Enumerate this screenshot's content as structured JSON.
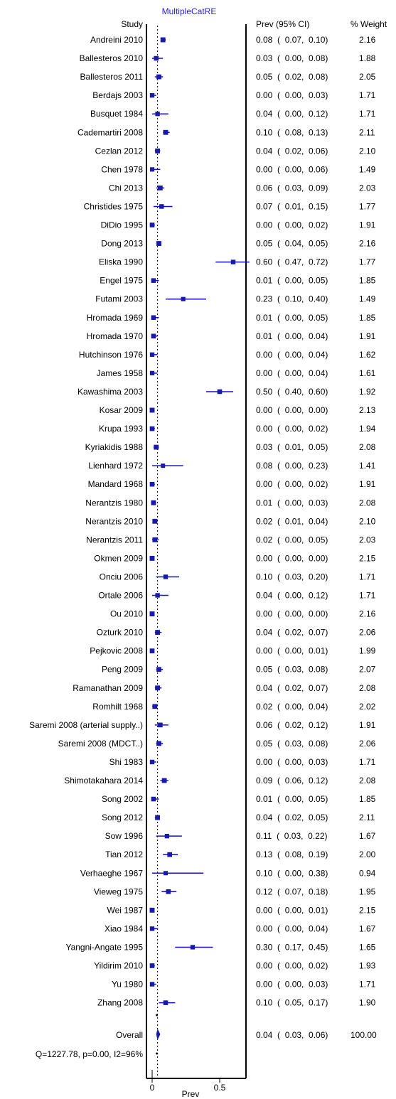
{
  "chart_data": {
    "type": "forest",
    "title": "MultipleCatRE",
    "headers": {
      "study": "Study",
      "estimate": "Prev (95% CI)",
      "weight": "% Weight"
    },
    "xlabel": "Prev",
    "xlim": [
      0,
      0.7
    ],
    "xticks": [
      "0",
      "0.5"
    ],
    "reference_line": 0.04,
    "studies": [
      {
        "name": "Andreini 2010",
        "est": 0.08,
        "lo": 0.07,
        "hi": 0.1,
        "estimate_text": "0.08  (  0.07,  0.10)",
        "weight": "2.16"
      },
      {
        "name": "Ballesteros 2010",
        "est": 0.03,
        "lo": 0.0,
        "hi": 0.08,
        "estimate_text": "0.03  (  0.00,  0.08)",
        "weight": "1.88"
      },
      {
        "name": "Ballesteros 2011",
        "est": 0.05,
        "lo": 0.02,
        "hi": 0.08,
        "estimate_text": "0.05  (  0.02,  0.08)",
        "weight": "2.05"
      },
      {
        "name": "Berdajs 2003",
        "est": 0.0,
        "lo": 0.0,
        "hi": 0.03,
        "estimate_text": "0.00  (  0.00,  0.03)",
        "weight": "1.71"
      },
      {
        "name": "Busquet 1984",
        "est": 0.04,
        "lo": 0.0,
        "hi": 0.12,
        "estimate_text": "0.04  (  0.00,  0.12)",
        "weight": "1.71"
      },
      {
        "name": "Cademartiri 2008",
        "est": 0.1,
        "lo": 0.08,
        "hi": 0.13,
        "estimate_text": "0.10  (  0.08,  0.13)",
        "weight": "2.11"
      },
      {
        "name": "Cezlan 2012",
        "est": 0.04,
        "lo": 0.02,
        "hi": 0.06,
        "estimate_text": "0.04  (  0.02,  0.06)",
        "weight": "2.10"
      },
      {
        "name": "Chen 1978",
        "est": 0.0,
        "lo": 0.0,
        "hi": 0.06,
        "estimate_text": "0.00  (  0.00,  0.06)",
        "weight": "1.49"
      },
      {
        "name": "Chi 2013",
        "est": 0.06,
        "lo": 0.03,
        "hi": 0.09,
        "estimate_text": "0.06  (  0.03,  0.09)",
        "weight": "2.03"
      },
      {
        "name": "Christides 1975",
        "est": 0.07,
        "lo": 0.01,
        "hi": 0.15,
        "estimate_text": "0.07  (  0.01,  0.15)",
        "weight": "1.77"
      },
      {
        "name": "DiDio 1995",
        "est": 0.0,
        "lo": 0.0,
        "hi": 0.02,
        "estimate_text": "0.00  (  0.00,  0.02)",
        "weight": "1.91"
      },
      {
        "name": "Dong 2013",
        "est": 0.05,
        "lo": 0.04,
        "hi": 0.05,
        "estimate_text": "0.05  (  0.04,  0.05)",
        "weight": "2.16"
      },
      {
        "name": "Eliska 1990",
        "est": 0.6,
        "lo": 0.47,
        "hi": 0.72,
        "estimate_text": "0.60  (  0.47,  0.72)",
        "weight": "1.77"
      },
      {
        "name": "Engel 1975",
        "est": 0.01,
        "lo": 0.0,
        "hi": 0.05,
        "estimate_text": "0.01  (  0.00,  0.05)",
        "weight": "1.85"
      },
      {
        "name": "Futami 2003",
        "est": 0.23,
        "lo": 0.1,
        "hi": 0.4,
        "estimate_text": "0.23  (  0.10,  0.40)",
        "weight": "1.49"
      },
      {
        "name": "Hromada 1969",
        "est": 0.01,
        "lo": 0.0,
        "hi": 0.05,
        "estimate_text": "0.01  (  0.00,  0.05)",
        "weight": "1.85"
      },
      {
        "name": "Hromada 1970",
        "est": 0.01,
        "lo": 0.0,
        "hi": 0.04,
        "estimate_text": "0.01  (  0.00,  0.04)",
        "weight": "1.91"
      },
      {
        "name": "Hutchinson 1976",
        "est": 0.0,
        "lo": 0.0,
        "hi": 0.04,
        "estimate_text": "0.00  (  0.00,  0.04)",
        "weight": "1.62"
      },
      {
        "name": "James 1958",
        "est": 0.0,
        "lo": 0.0,
        "hi": 0.04,
        "estimate_text": "0.00  (  0.00,  0.04)",
        "weight": "1.61"
      },
      {
        "name": "Kawashima 2003",
        "est": 0.5,
        "lo": 0.4,
        "hi": 0.6,
        "estimate_text": "0.50  (  0.40,  0.60)",
        "weight": "1.92"
      },
      {
        "name": "Kosar 2009",
        "est": 0.0,
        "lo": 0.0,
        "hi": 0.0,
        "estimate_text": "0.00  (  0.00,  0.00)",
        "weight": "2.13"
      },
      {
        "name": "Krupa 1993",
        "est": 0.0,
        "lo": 0.0,
        "hi": 0.02,
        "estimate_text": "0.00  (  0.00,  0.02)",
        "weight": "1.94"
      },
      {
        "name": "Kyriakidis 1988",
        "est": 0.03,
        "lo": 0.01,
        "hi": 0.05,
        "estimate_text": "0.03  (  0.01,  0.05)",
        "weight": "2.08"
      },
      {
        "name": "Lienhard 1972",
        "est": 0.08,
        "lo": 0.0,
        "hi": 0.23,
        "estimate_text": "0.08  (  0.00,  0.23)",
        "weight": "1.41"
      },
      {
        "name": "Mandard 1968",
        "est": 0.0,
        "lo": 0.0,
        "hi": 0.02,
        "estimate_text": "0.00  (  0.00,  0.02)",
        "weight": "1.91"
      },
      {
        "name": "Nerantzis 1980",
        "est": 0.01,
        "lo": 0.0,
        "hi": 0.03,
        "estimate_text": "0.01  (  0.00,  0.03)",
        "weight": "2.08"
      },
      {
        "name": "Nerantzis 2010",
        "est": 0.02,
        "lo": 0.01,
        "hi": 0.04,
        "estimate_text": "0.02  (  0.01,  0.04)",
        "weight": "2.10"
      },
      {
        "name": "Nerantzis 2011",
        "est": 0.02,
        "lo": 0.0,
        "hi": 0.05,
        "estimate_text": "0.02  (  0.00,  0.05)",
        "weight": "2.03"
      },
      {
        "name": "Okmen 2009",
        "est": 0.0,
        "lo": 0.0,
        "hi": 0.0,
        "estimate_text": "0.00  (  0.00,  0.00)",
        "weight": "2.15"
      },
      {
        "name": "Onciu 2006",
        "est": 0.1,
        "lo": 0.03,
        "hi": 0.2,
        "estimate_text": "0.10  (  0.03,  0.20)",
        "weight": "1.71"
      },
      {
        "name": "Ortale 2006",
        "est": 0.04,
        "lo": 0.0,
        "hi": 0.12,
        "estimate_text": "0.04  (  0.00,  0.12)",
        "weight": "1.71"
      },
      {
        "name": "Ou 2010",
        "est": 0.0,
        "lo": 0.0,
        "hi": 0.0,
        "estimate_text": "0.00  (  0.00,  0.00)",
        "weight": "2.16"
      },
      {
        "name": "Ozturk 2010",
        "est": 0.04,
        "lo": 0.02,
        "hi": 0.07,
        "estimate_text": "0.04  (  0.02,  0.07)",
        "weight": "2.06"
      },
      {
        "name": "Pejkovic 2008",
        "est": 0.0,
        "lo": 0.0,
        "hi": 0.01,
        "estimate_text": "0.00  (  0.00,  0.01)",
        "weight": "1.99"
      },
      {
        "name": "Peng 2009",
        "est": 0.05,
        "lo": 0.03,
        "hi": 0.08,
        "estimate_text": "0.05  (  0.03,  0.08)",
        "weight": "2.07"
      },
      {
        "name": "Ramanathan 2009",
        "est": 0.04,
        "lo": 0.02,
        "hi": 0.07,
        "estimate_text": "0.04  (  0.02,  0.07)",
        "weight": "2.08"
      },
      {
        "name": "Romhilt 1968",
        "est": 0.02,
        "lo": 0.0,
        "hi": 0.04,
        "estimate_text": "0.02  (  0.00,  0.04)",
        "weight": "2.02"
      },
      {
        "name": "Saremi 2008 (arterial supply..)",
        "est": 0.06,
        "lo": 0.02,
        "hi": 0.12,
        "estimate_text": "0.06  (  0.02,  0.12)",
        "weight": "1.91"
      },
      {
        "name": "Saremi 2008 (MDCT..)",
        "est": 0.05,
        "lo": 0.03,
        "hi": 0.08,
        "estimate_text": "0.05  (  0.03,  0.08)",
        "weight": "2.06"
      },
      {
        "name": "Shi 1983",
        "est": 0.0,
        "lo": 0.0,
        "hi": 0.03,
        "estimate_text": "0.00  (  0.00,  0.03)",
        "weight": "1.71"
      },
      {
        "name": "Shimotakahara 2014",
        "est": 0.09,
        "lo": 0.06,
        "hi": 0.12,
        "estimate_text": "0.09  (  0.06,  0.12)",
        "weight": "2.08"
      },
      {
        "name": "Song 2002",
        "est": 0.01,
        "lo": 0.0,
        "hi": 0.05,
        "estimate_text": "0.01  (  0.00,  0.05)",
        "weight": "1.85"
      },
      {
        "name": "Song 2012",
        "est": 0.04,
        "lo": 0.02,
        "hi": 0.05,
        "estimate_text": "0.04  (  0.02,  0.05)",
        "weight": "2.11"
      },
      {
        "name": "Sow 1996",
        "est": 0.11,
        "lo": 0.03,
        "hi": 0.22,
        "estimate_text": "0.11  (  0.03,  0.22)",
        "weight": "1.67"
      },
      {
        "name": "Tian 2012",
        "est": 0.13,
        "lo": 0.08,
        "hi": 0.19,
        "estimate_text": "0.13  (  0.08,  0.19)",
        "weight": "2.00"
      },
      {
        "name": "Verhaeghe 1967",
        "est": 0.1,
        "lo": 0.0,
        "hi": 0.38,
        "estimate_text": "0.10  (  0.00,  0.38)",
        "weight": "0.94"
      },
      {
        "name": "Vieweg 1975",
        "est": 0.12,
        "lo": 0.07,
        "hi": 0.18,
        "estimate_text": "0.12  (  0.07,  0.18)",
        "weight": "1.95"
      },
      {
        "name": "Wei 1987",
        "est": 0.0,
        "lo": 0.0,
        "hi": 0.01,
        "estimate_text": "0.00  (  0.00,  0.01)",
        "weight": "2.15"
      },
      {
        "name": "Xiao 1984",
        "est": 0.0,
        "lo": 0.0,
        "hi": 0.04,
        "estimate_text": "0.00  (  0.00,  0.04)",
        "weight": "1.67"
      },
      {
        "name": "Yangni-Angate 1995",
        "est": 0.3,
        "lo": 0.17,
        "hi": 0.45,
        "estimate_text": "0.30  (  0.17,  0.45)",
        "weight": "1.65"
      },
      {
        "name": "Yildirim 2010",
        "est": 0.0,
        "lo": 0.0,
        "hi": 0.02,
        "estimate_text": "0.00  (  0.00,  0.02)",
        "weight": "1.93"
      },
      {
        "name": "Yu 1980",
        "est": 0.0,
        "lo": 0.0,
        "hi": 0.03,
        "estimate_text": "0.00  (  0.00,  0.03)",
        "weight": "1.71"
      },
      {
        "name": "Zhang 2008",
        "est": 0.1,
        "lo": 0.05,
        "hi": 0.17,
        "estimate_text": "0.10  (  0.05,  0.17)",
        "weight": "1.90"
      }
    ],
    "overall": {
      "name": "Overall",
      "est": 0.04,
      "lo": 0.03,
      "hi": 0.06,
      "estimate_text": "0.04  (  0.03,  0.06)",
      "weight": "100.00"
    },
    "heterogeneity": "Q=1227.78, p=0.00, I2=96%",
    "colors": {
      "marker": "#1a1aa8",
      "line": "#1010d0",
      "title": "#2222dd",
      "text": "#000000"
    }
  }
}
